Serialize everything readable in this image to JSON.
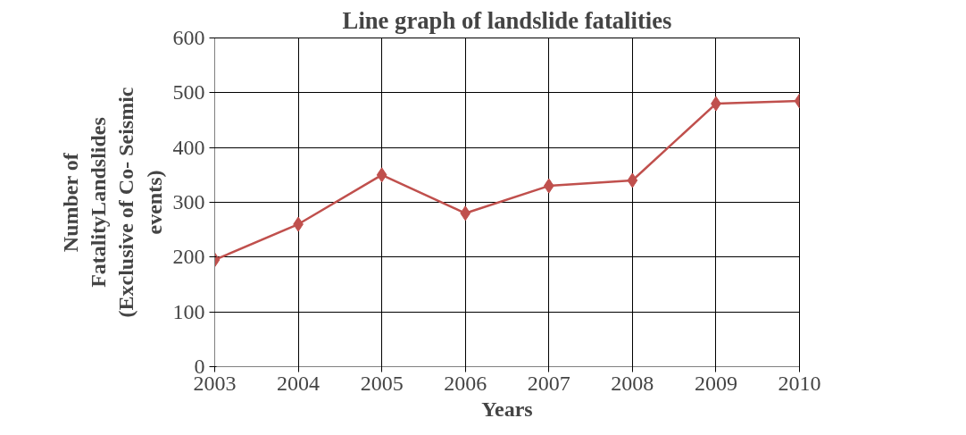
{
  "chart_data": {
    "type": "line",
    "title": "Line graph of landslide fatalities",
    "xlabel": "Years",
    "ylabel": "Number of\nFatalityLandslides\n(Exclusive of Co- Seismic\nevents)",
    "categories": [
      "2003",
      "2004",
      "2005",
      "2006",
      "2007",
      "2008",
      "2009",
      "2010"
    ],
    "series": [
      {
        "color": "#c0504d",
        "values": [
          195,
          260,
          350,
          280,
          330,
          340,
          480,
          485
        ]
      }
    ],
    "ylim": [
      0,
      600
    ],
    "yticks": [
      0,
      100,
      200,
      300,
      400,
      500,
      600
    ],
    "grid": true,
    "marker": "diamond",
    "line_style": "solid"
  }
}
